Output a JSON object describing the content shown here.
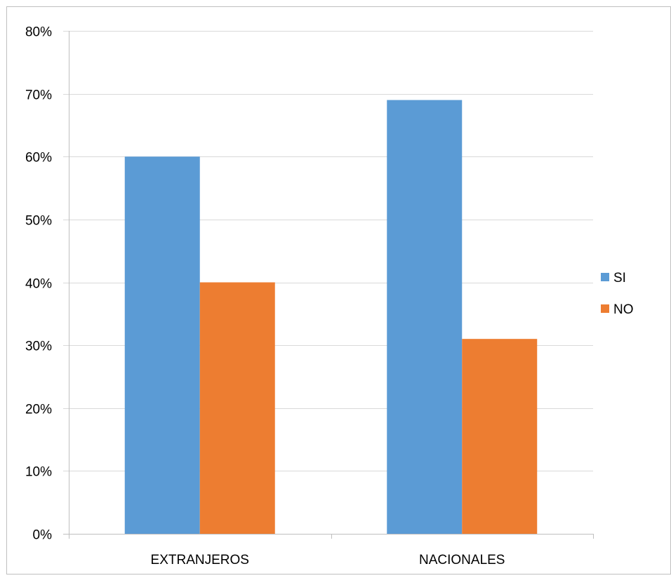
{
  "chart_data": {
    "type": "bar",
    "title": "",
    "xlabel": "",
    "ylabel": "",
    "categories": [
      "EXTRANJEROS",
      "NACIONALES"
    ],
    "series": [
      {
        "name": "SI",
        "values": [
          0.6,
          0.69
        ],
        "color": "#5B9BD5"
      },
      {
        "name": "NO",
        "values": [
          0.4,
          0.31
        ],
        "color": "#ED7D31"
      }
    ],
    "ylim": [
      0,
      0.8
    ],
    "yticks": [
      {
        "value": 0.0,
        "label": "0%"
      },
      {
        "value": 0.1,
        "label": "10%"
      },
      {
        "value": 0.2,
        "label": "20%"
      },
      {
        "value": 0.3,
        "label": "30%"
      },
      {
        "value": 0.4,
        "label": "40%"
      },
      {
        "value": 0.5,
        "label": "50%"
      },
      {
        "value": 0.6,
        "label": "60%"
      },
      {
        "value": 0.7,
        "label": "70%"
      },
      {
        "value": 0.8,
        "label": "80%"
      }
    ],
    "grid": true,
    "legend": "right",
    "colors": {
      "gridline": "#D9D9D9",
      "axis": "#BFBFBF",
      "border": "#BFBFBF"
    }
  }
}
